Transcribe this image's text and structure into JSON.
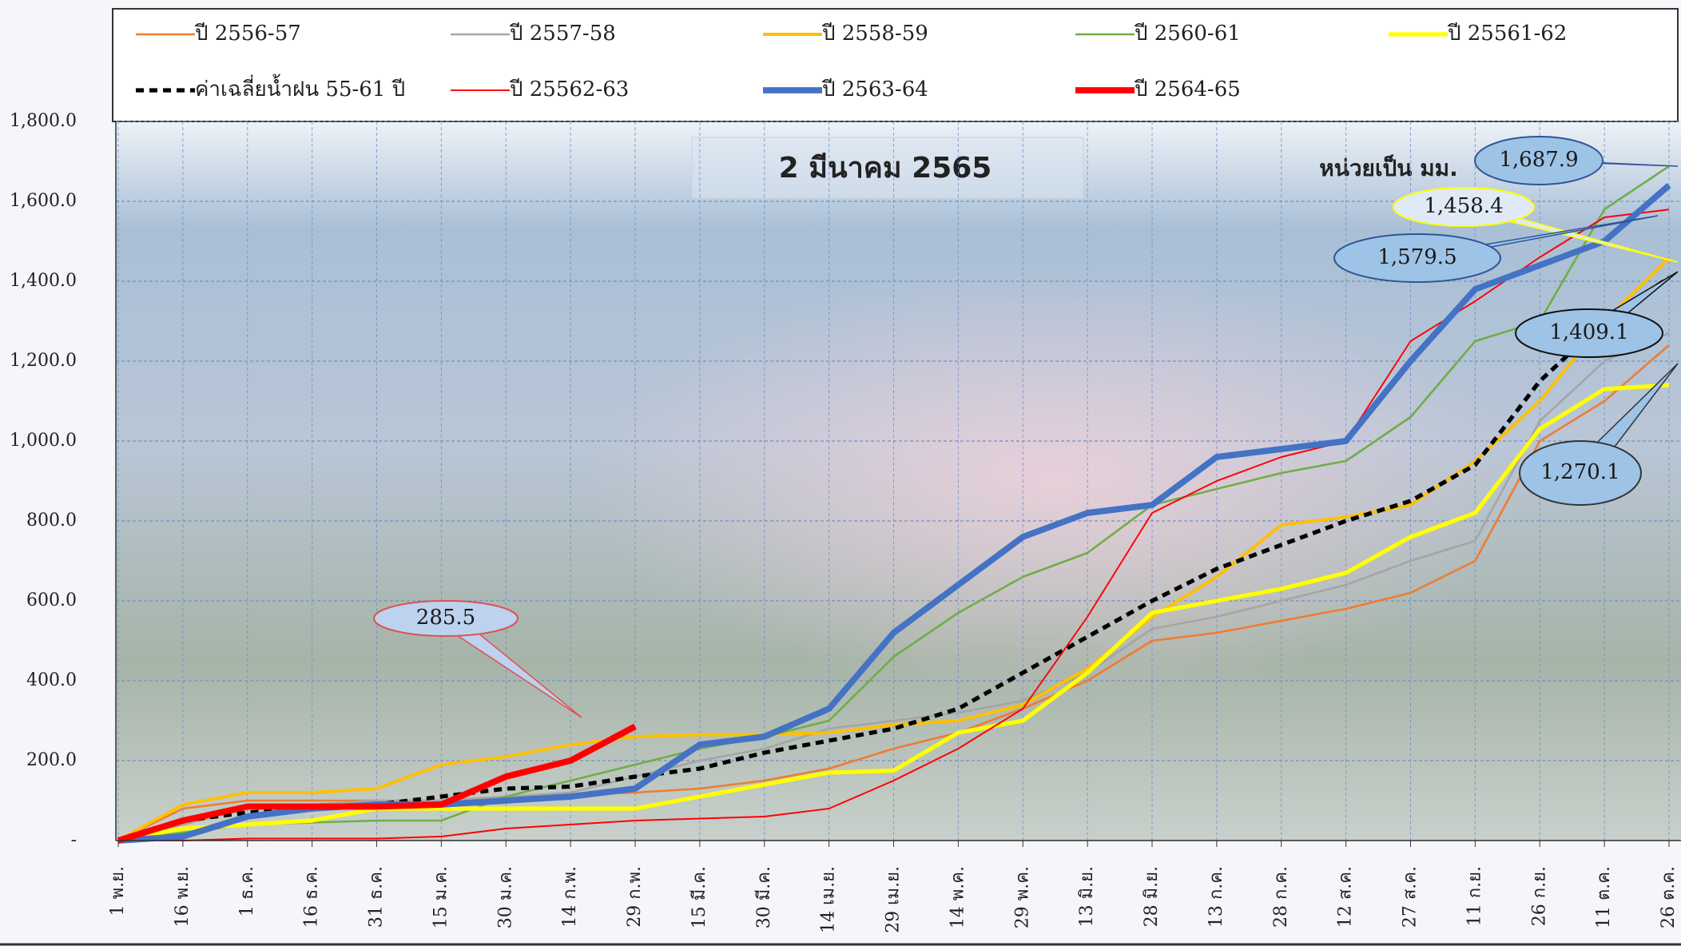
{
  "chart_data": {
    "type": "line",
    "title": "2 มีนาคม 2565",
    "unit_label": "หน่วยเป็น มม.",
    "categories": [
      "1 พ.ย.",
      "16 พ.ย.",
      "1 ธ.ค.",
      "16 ธ.ค.",
      "31 ธ.ค.",
      "15 ม.ค.",
      "30 ม.ค.",
      "14 ก.พ.",
      "29 ก.พ.",
      "15 มี.ค.",
      "30 มี.ค.",
      "14 เม.ย.",
      "29 เม.ย.",
      "14 พ.ค.",
      "29 พ.ค.",
      "13 มิ.ย.",
      "28 มิ.ย.",
      "13 ก.ค.",
      "28 ก.ค.",
      "12 ส.ค.",
      "27 ส.ค.",
      "11 ก.ย.",
      "26 ก.ย.",
      "11 ต.ค.",
      "26 ต.ค."
    ],
    "ylim": [
      0,
      1800
    ],
    "yticks": [
      {
        "value": 0,
        "label": "-"
      },
      {
        "value": 200,
        "label": "200.0"
      },
      {
        "value": 400,
        "label": "400.0"
      },
      {
        "value": 600,
        "label": "600.0"
      },
      {
        "value": 800,
        "label": "800.0"
      },
      {
        "value": 1000,
        "label": "1,000.0"
      },
      {
        "value": 1200,
        "label": "1,200.0"
      },
      {
        "value": 1400,
        "label": "1,400.0"
      },
      {
        "value": 1600,
        "label": "1,600.0"
      },
      {
        "value": 1800,
        "label": "1,800.0"
      }
    ],
    "grid": true,
    "series": [
      {
        "name": "ปี 2556-57",
        "color": "#ed7d31",
        "width": 2,
        "values": [
          0,
          80,
          100,
          100,
          100,
          100,
          110,
          115,
          120,
          130,
          150,
          180,
          230,
          270,
          330,
          400,
          500,
          520,
          550,
          580,
          620,
          700,
          1000,
          1100,
          1240
        ]
      },
      {
        "name": "ปี 2557-58",
        "color": "#a5a5a5",
        "width": 2,
        "values": [
          0,
          40,
          80,
          90,
          100,
          100,
          110,
          120,
          160,
          200,
          230,
          280,
          300,
          320,
          350,
          420,
          530,
          560,
          600,
          640,
          700,
          750,
          1050,
          1200,
          1270.1
        ]
      },
      {
        "name": "ปี 2558-59",
        "color": "#ffc000",
        "width": 3,
        "values": [
          0,
          90,
          120,
          120,
          130,
          190,
          210,
          240,
          260,
          265,
          265,
          270,
          290,
          300,
          340,
          430,
          560,
          660,
          790,
          810,
          840,
          950,
          1100,
          1300,
          1458.4
        ]
      },
      {
        "name": "ปี 2560-61",
        "color": "#70ad47",
        "width": 2,
        "values": [
          0,
          20,
          40,
          45,
          50,
          50,
          110,
          150,
          190,
          230,
          260,
          300,
          460,
          570,
          660,
          720,
          840,
          880,
          920,
          950,
          1060,
          1250,
          1300,
          1580,
          1687.9
        ]
      },
      {
        "name": "ปี 25561-62",
        "color": "#ffff00",
        "width": 4,
        "values": [
          0,
          30,
          40,
          50,
          80,
          80,
          80,
          80,
          80,
          110,
          140,
          170,
          175,
          270,
          300,
          420,
          570,
          600,
          630,
          670,
          760,
          820,
          1030,
          1130,
          1140
        ]
      },
      {
        "name": "ค่าเฉลี่ยน้ำฝน 55-61 ปี",
        "color": "#000000",
        "width": 4,
        "dash": true,
        "values": [
          0,
          50,
          70,
          80,
          90,
          110,
          130,
          135,
          160,
          180,
          220,
          250,
          280,
          330,
          420,
          510,
          600,
          680,
          740,
          800,
          850,
          940,
          1150,
          1300,
          1409.1
        ]
      },
      {
        "name": "ปี 25562-63",
        "color": "#ff0000",
        "width": 1.5,
        "values": [
          0,
          0,
          5,
          5,
          5,
          10,
          30,
          40,
          50,
          55,
          60,
          80,
          150,
          230,
          330,
          560,
          820,
          900,
          960,
          1000,
          1250,
          1350,
          1460,
          1560,
          1579.5
        ]
      },
      {
        "name": "ปี 2563-64",
        "color": "#4472c4",
        "width": 6,
        "values": [
          0,
          10,
          60,
          80,
          90,
          90,
          100,
          110,
          130,
          240,
          260,
          330,
          520,
          640,
          760,
          820,
          840,
          960,
          980,
          1000,
          1200,
          1380,
          1440,
          1500,
          1640
        ]
      },
      {
        "name": "ปี 2564-65",
        "color": "#ff0000",
        "width": 6,
        "values": [
          0,
          50,
          85,
          85,
          85,
          90,
          160,
          200,
          285.5,
          null,
          null,
          null,
          null,
          null,
          null,
          null,
          null,
          null,
          null,
          null,
          null,
          null,
          null,
          null,
          null
        ]
      }
    ],
    "annotations": [
      "285.5",
      "1,687.9",
      "1,458.4",
      "1,579.5",
      "1,409.1",
      "1,270.1"
    ]
  }
}
